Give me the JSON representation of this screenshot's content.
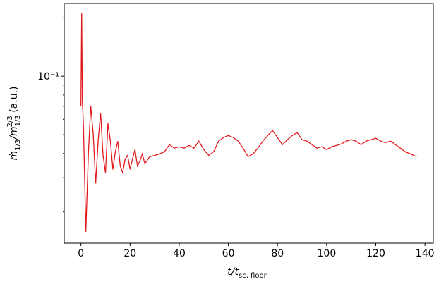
{
  "chart_data": {
    "type": "line",
    "xlabel": [
      "t/t",
      "sc, floor"
    ],
    "ylabel": [
      "ṁ",
      "1/3",
      "/m",
      "1/3",
      "2/3",
      " (a.u.)"
    ],
    "ylog": true,
    "xlim": [
      -6.8,
      143.4
    ],
    "xticks": [
      0,
      20,
      40,
      60,
      80,
      100,
      120,
      140
    ],
    "ylim": [
      0.0138,
      0.237
    ],
    "yticks": [
      {
        "value": 0.1,
        "label": "10⁻¹"
      }
    ],
    "yminorticks": [
      0.02,
      0.03,
      0.04,
      0.05,
      0.06,
      0.07,
      0.08,
      0.09,
      0.2
    ],
    "series": [
      {
        "color": "#e31a1c",
        "x": [
          0,
          0.3,
          0.6,
          1,
          2,
          3,
          4,
          5,
          6,
          7,
          8,
          9,
          10,
          11,
          12,
          13,
          14,
          15,
          16,
          17,
          18,
          19,
          20,
          21,
          22,
          23,
          24,
          25,
          26,
          28,
          30,
          32,
          34,
          36,
          38,
          40,
          42,
          44,
          46,
          48,
          50,
          52,
          54,
          56,
          58,
          60,
          62,
          64,
          66,
          68,
          70,
          72,
          74,
          76,
          78,
          80,
          82,
          84,
          86,
          88,
          90,
          92,
          94,
          96,
          98,
          100,
          102,
          104,
          106,
          108,
          110,
          112,
          114,
          116,
          118,
          120,
          122,
          124,
          126,
          128,
          130,
          132,
          134,
          136.6
        ],
        "values": [
          0.0704,
          0.2125,
          0.0734,
          0.0571,
          0.0158,
          0.0391,
          0.0704,
          0.0503,
          0.028,
          0.0463,
          0.0647,
          0.0391,
          0.0318,
          0.0571,
          0.0463,
          0.0331,
          0.0408,
          0.0463,
          0.0345,
          0.0318,
          0.0375,
          0.0391,
          0.0331,
          0.0375,
          0.0419,
          0.0345,
          0.0366,
          0.0398,
          0.0354,
          0.0385,
          0.0391,
          0.0398,
          0.0408,
          0.0444,
          0.0426,
          0.0433,
          0.0426,
          0.044,
          0.0426,
          0.0463,
          0.0419,
          0.0391,
          0.0408,
          0.0463,
          0.0483,
          0.0495,
          0.0483,
          0.0463,
          0.0426,
          0.0385,
          0.0398,
          0.0426,
          0.0463,
          0.0495,
          0.0525,
          0.0483,
          0.0444,
          0.0471,
          0.0495,
          0.0512,
          0.0471,
          0.0463,
          0.0444,
          0.0426,
          0.0433,
          0.0419,
          0.0433,
          0.044,
          0.0448,
          0.0463,
          0.0471,
          0.0463,
          0.0444,
          0.0463,
          0.0471,
          0.0479,
          0.0463,
          0.0455,
          0.0463,
          0.0444,
          0.0426,
          0.0408,
          0.0398,
          0.0385
        ]
      }
    ]
  }
}
